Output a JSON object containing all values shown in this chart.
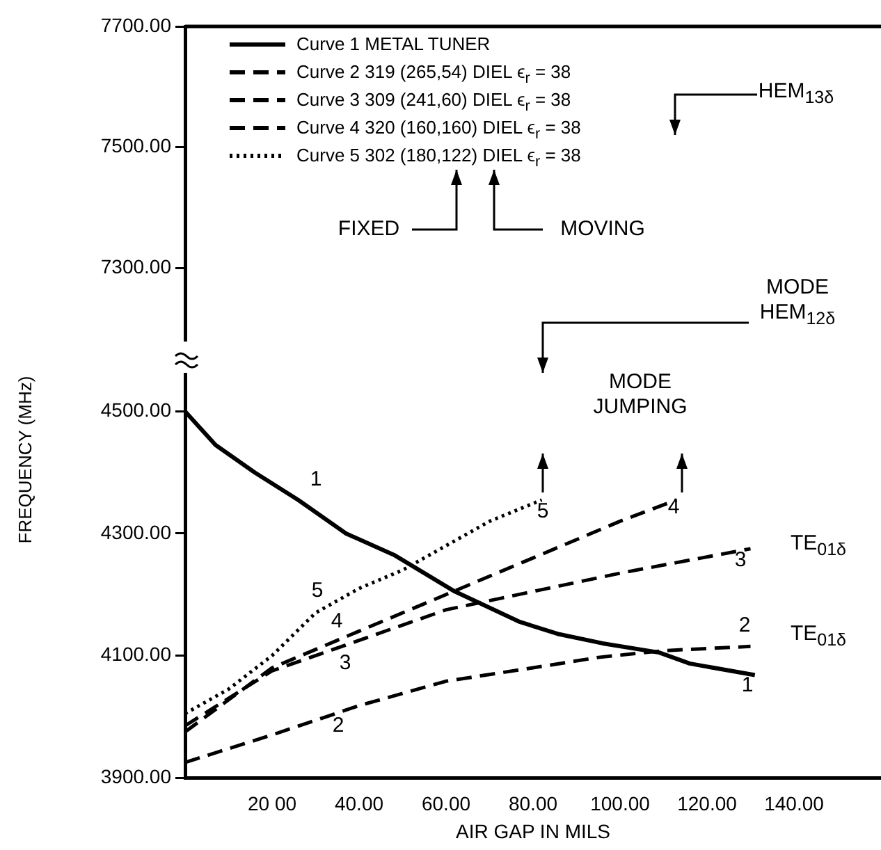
{
  "chart_data": [
    {
      "type": "line",
      "ylim": [
        7180,
        7700
      ],
      "yticks": [
        {
          "value": 7300,
          "label": "7300.00"
        },
        {
          "value": 7500,
          "label": "7500.00"
        },
        {
          "value": 7700,
          "label": "7700.00"
        }
      ],
      "xlim": [
        0,
        160
      ],
      "tick_labels": "y",
      "annotations": [
        "FIXED",
        "MOVING",
        "HEM$_{13δ}$"
      ]
    },
    {
      "type": "line",
      "xlabel": "AIR GAP IN MILS",
      "ylabel": "FREQUENCY (MHz)",
      "xlim": [
        0,
        160
      ],
      "xticks": [
        {
          "value": 20,
          "label": "20 00"
        },
        {
          "value": 40,
          "label": "40.00"
        },
        {
          "value": 60,
          "label": "60.00"
        },
        {
          "value": 80,
          "label": "80.00"
        },
        {
          "value": 100,
          "label": "100.00"
        },
        {
          "value": 120,
          "label": "120.00"
        },
        {
          "value": 140,
          "label": "140.00"
        }
      ],
      "ylim": [
        3900,
        4560
      ],
      "yticks": [
        {
          "value": 3900,
          "label": "3900.00"
        },
        {
          "value": 4100,
          "label": "4100.00"
        },
        {
          "value": 4300,
          "label": "4300.00"
        },
        {
          "value": 4500,
          "label": "4500.00"
        }
      ],
      "legend": "top left",
      "grid": false,
      "marker": "none",
      "series": [
        {
          "name": "Curve 1 METAL TUNER",
          "color": "#000000",
          "line_style": "solid",
          "x": [
            0,
            7,
            16,
            26,
            37,
            48,
            62,
            77,
            86,
            96,
            109,
            116,
            131
          ],
          "values": [
            4500,
            4445,
            4400,
            4355,
            4300,
            4265,
            4205,
            4155,
            4135,
            4120,
            4105,
            4087,
            4068
          ]
        },
        {
          "name": "Curve 2 319 (265,54) DIEL ϵ$_{r}$ = 38",
          "color": "#000000",
          "line_style": "dashed",
          "x": [
            0,
            20,
            40,
            60,
            80,
            95,
            110,
            130
          ],
          "values": [
            3925,
            3970,
            4018,
            4058,
            4080,
            4097,
            4108,
            4115
          ]
        },
        {
          "name": "Curve 3 309 (241,60) DIEL ϵ$_{r}$ = 38",
          "color": "#000000",
          "line_style": "dashed",
          "x": [
            0,
            20,
            40,
            60,
            80,
            100,
            130
          ],
          "values": [
            3985,
            4075,
            4125,
            4175,
            4205,
            4235,
            4275
          ]
        },
        {
          "name": "Curve 4 320 (160,160) DIEL ϵ$_{r}$ = 38",
          "color": "#000000",
          "line_style": "dashed",
          "x": [
            0,
            20,
            40,
            60,
            80,
            100,
            113
          ],
          "values": [
            3975,
            4080,
            4140,
            4200,
            4260,
            4320,
            4355
          ]
        },
        {
          "name": "Curve 5 302 (180,122) DIEL ϵ$_{r}$ = 38",
          "color": "#000000",
          "line_style": "dotted",
          "x": [
            0,
            10,
            20,
            30,
            40,
            50,
            60,
            70,
            82
          ],
          "values": [
            4005,
            4045,
            4100,
            4170,
            4210,
            4240,
            4280,
            4320,
            4355
          ]
        }
      ],
      "annotations": [
        "1",
        "1",
        "2",
        "2",
        "3",
        "3",
        "4",
        "4",
        "5",
        "5",
        "TE$_{01δ}$",
        "TE$_{01δ}$",
        "MODE\nJUMPING",
        "MODE\nHEM$_{12δ}$"
      ]
    }
  ]
}
